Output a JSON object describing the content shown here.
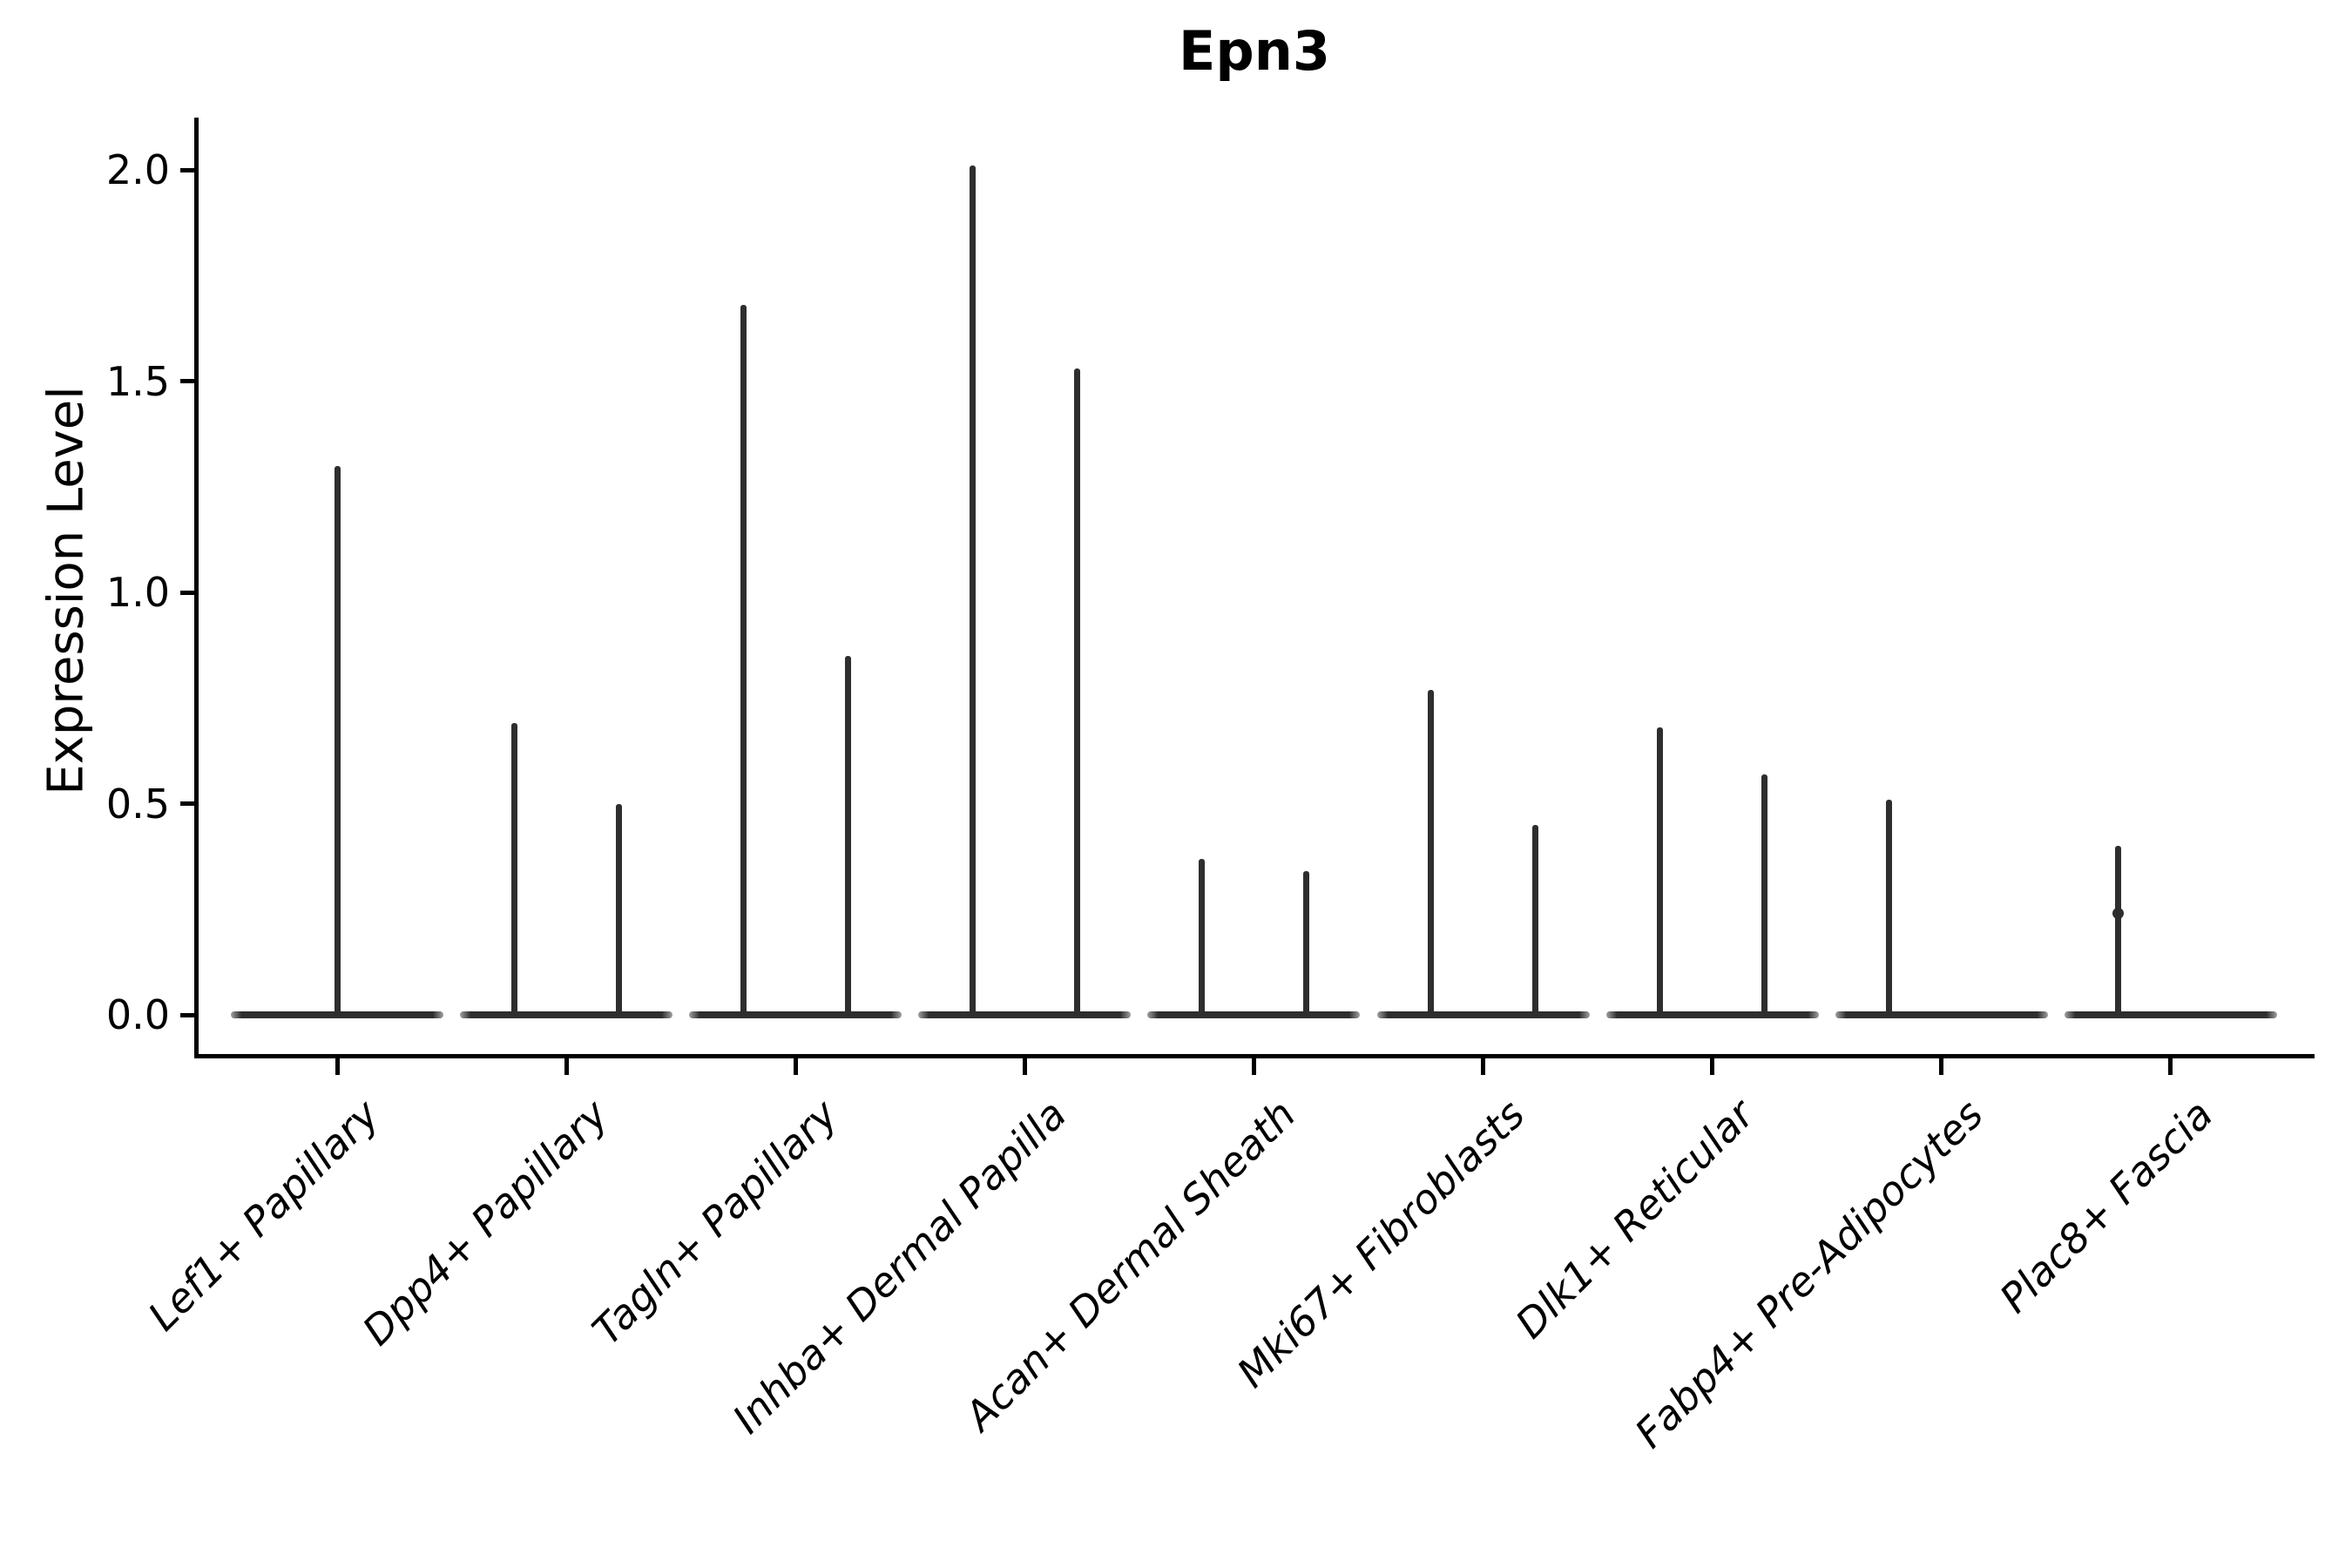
{
  "title": "Epn3",
  "chart_data": {
    "type": "violin",
    "title": "Epn3",
    "xlabel": "",
    "ylabel": "Expression Level",
    "ylim": [
      0,
      2.12
    ],
    "yticks": [
      0.0,
      0.5,
      1.0,
      1.5,
      2.0
    ],
    "ytick_labels": [
      "0.0",
      "0.5",
      "1.0",
      "1.5",
      "2.0"
    ],
    "grid": false,
    "legend": null,
    "baseline_value": 0,
    "line_color": "#2e2e2e",
    "axis_color": "#000000",
    "categories": [
      "Lef1+ Papillary",
      "Dpp4+ Papillary",
      "Tagln+ Papillary",
      "Inhba+ Dermal Papilla",
      "Acan+ Dermal Sheath",
      "Mki67+ Fibroblasts",
      "Dlk1+ Reticular",
      "Fabp4+ Pre-Adipocytes",
      "Plac8+ Fascia"
    ],
    "violins": [
      {
        "category": "Lef1+ Papillary",
        "spikes": [
          {
            "pos": "center",
            "max": 1.3
          }
        ]
      },
      {
        "category": "Dpp4+ Papillary",
        "spikes": [
          {
            "pos": "left",
            "max": 0.69
          },
          {
            "pos": "right",
            "max": 0.5
          }
        ]
      },
      {
        "category": "Tagln+ Papillary",
        "spikes": [
          {
            "pos": "left",
            "max": 1.68
          },
          {
            "pos": "right",
            "max": 0.85
          }
        ]
      },
      {
        "category": "Inhba+ Dermal Papilla",
        "spikes": [
          {
            "pos": "left",
            "max": 2.01
          },
          {
            "pos": "right",
            "max": 1.53
          }
        ]
      },
      {
        "category": "Acan+ Dermal Sheath",
        "spikes": [
          {
            "pos": "left",
            "max": 0.37
          },
          {
            "pos": "right",
            "max": 0.34
          }
        ]
      },
      {
        "category": "Mki67+ Fibroblasts",
        "spikes": [
          {
            "pos": "left",
            "max": 0.77
          },
          {
            "pos": "right",
            "max": 0.45
          }
        ]
      },
      {
        "category": "Dlk1+ Reticular",
        "spikes": [
          {
            "pos": "left",
            "max": 0.68
          },
          {
            "pos": "right",
            "max": 0.57
          }
        ]
      },
      {
        "category": "Fabp4+ Pre-Adipocytes",
        "spikes": [
          {
            "pos": "left",
            "max": 0.51
          }
        ]
      },
      {
        "category": "Plac8+ Fascia",
        "spikes": [
          {
            "pos": "left",
            "max": 0.4,
            "knot": 0.24
          }
        ]
      }
    ]
  }
}
